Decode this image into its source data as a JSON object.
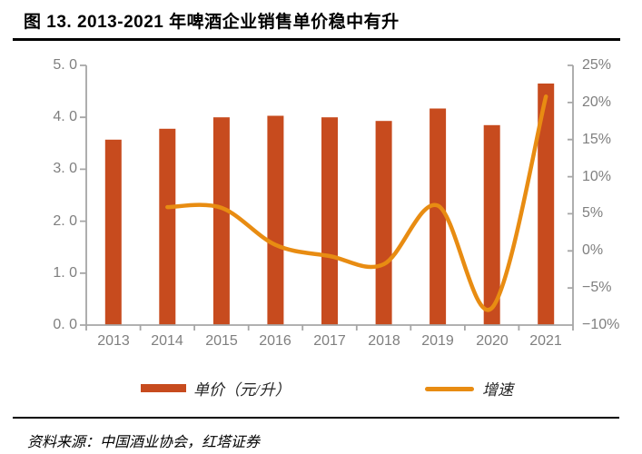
{
  "title": "图 13. 2013-2021 年啤酒企业销售单价稳中有升",
  "source": "资料来源：中国酒业协会，红塔证券",
  "legend": {
    "bar_label": "单价（元/升）",
    "line_label": "增速"
  },
  "axes": {
    "left_ticks": [
      "5. 0",
      "4. 0",
      "3. 0",
      "2. 0",
      "1. 0",
      "0. 0"
    ],
    "right_ticks": [
      "25%",
      "20%",
      "15%",
      "10%",
      "5%",
      "0%",
      "−5%",
      "−10%"
    ],
    "x_labels": [
      "2013",
      "2014",
      "2015",
      "2016",
      "2017",
      "2018",
      "2019",
      "2020",
      "2021"
    ]
  },
  "colors": {
    "bar": "#c74b1e",
    "line": "#e88c12",
    "axis": "#a6a6a6",
    "tick_text": "#7f7f7f"
  },
  "chart_data": {
    "type": "bar",
    "title": "2013-2021 年啤酒企业销售单价稳中有升",
    "categories": [
      2013,
      2014,
      2015,
      2016,
      2017,
      2018,
      2019,
      2020,
      2021
    ],
    "series": [
      {
        "name": "单价（元/升）",
        "type": "bar",
        "axis": "left",
        "values": [
          3.57,
          3.78,
          4.0,
          4.03,
          4.0,
          3.93,
          4.17,
          3.85,
          4.65
        ]
      },
      {
        "name": "增速",
        "type": "line",
        "axis": "right",
        "x": [
          2014,
          2015,
          2016,
          2017,
          2018,
          2019,
          2020,
          2021
        ],
        "values": [
          5.9,
          5.8,
          0.8,
          -0.7,
          -1.8,
          6.1,
          -7.7,
          20.8
        ],
        "unit": "%"
      }
    ],
    "left_axis": {
      "min": 0,
      "max": 5,
      "ticks": [
        0,
        1,
        2,
        3,
        4,
        5
      ]
    },
    "right_axis": {
      "min": -10,
      "max": 25,
      "ticks": [
        -10,
        -5,
        0,
        5,
        10,
        15,
        20,
        25
      ],
      "format": "percent"
    },
    "grid": false,
    "legend_position": "bottom",
    "smooth_line": true
  }
}
